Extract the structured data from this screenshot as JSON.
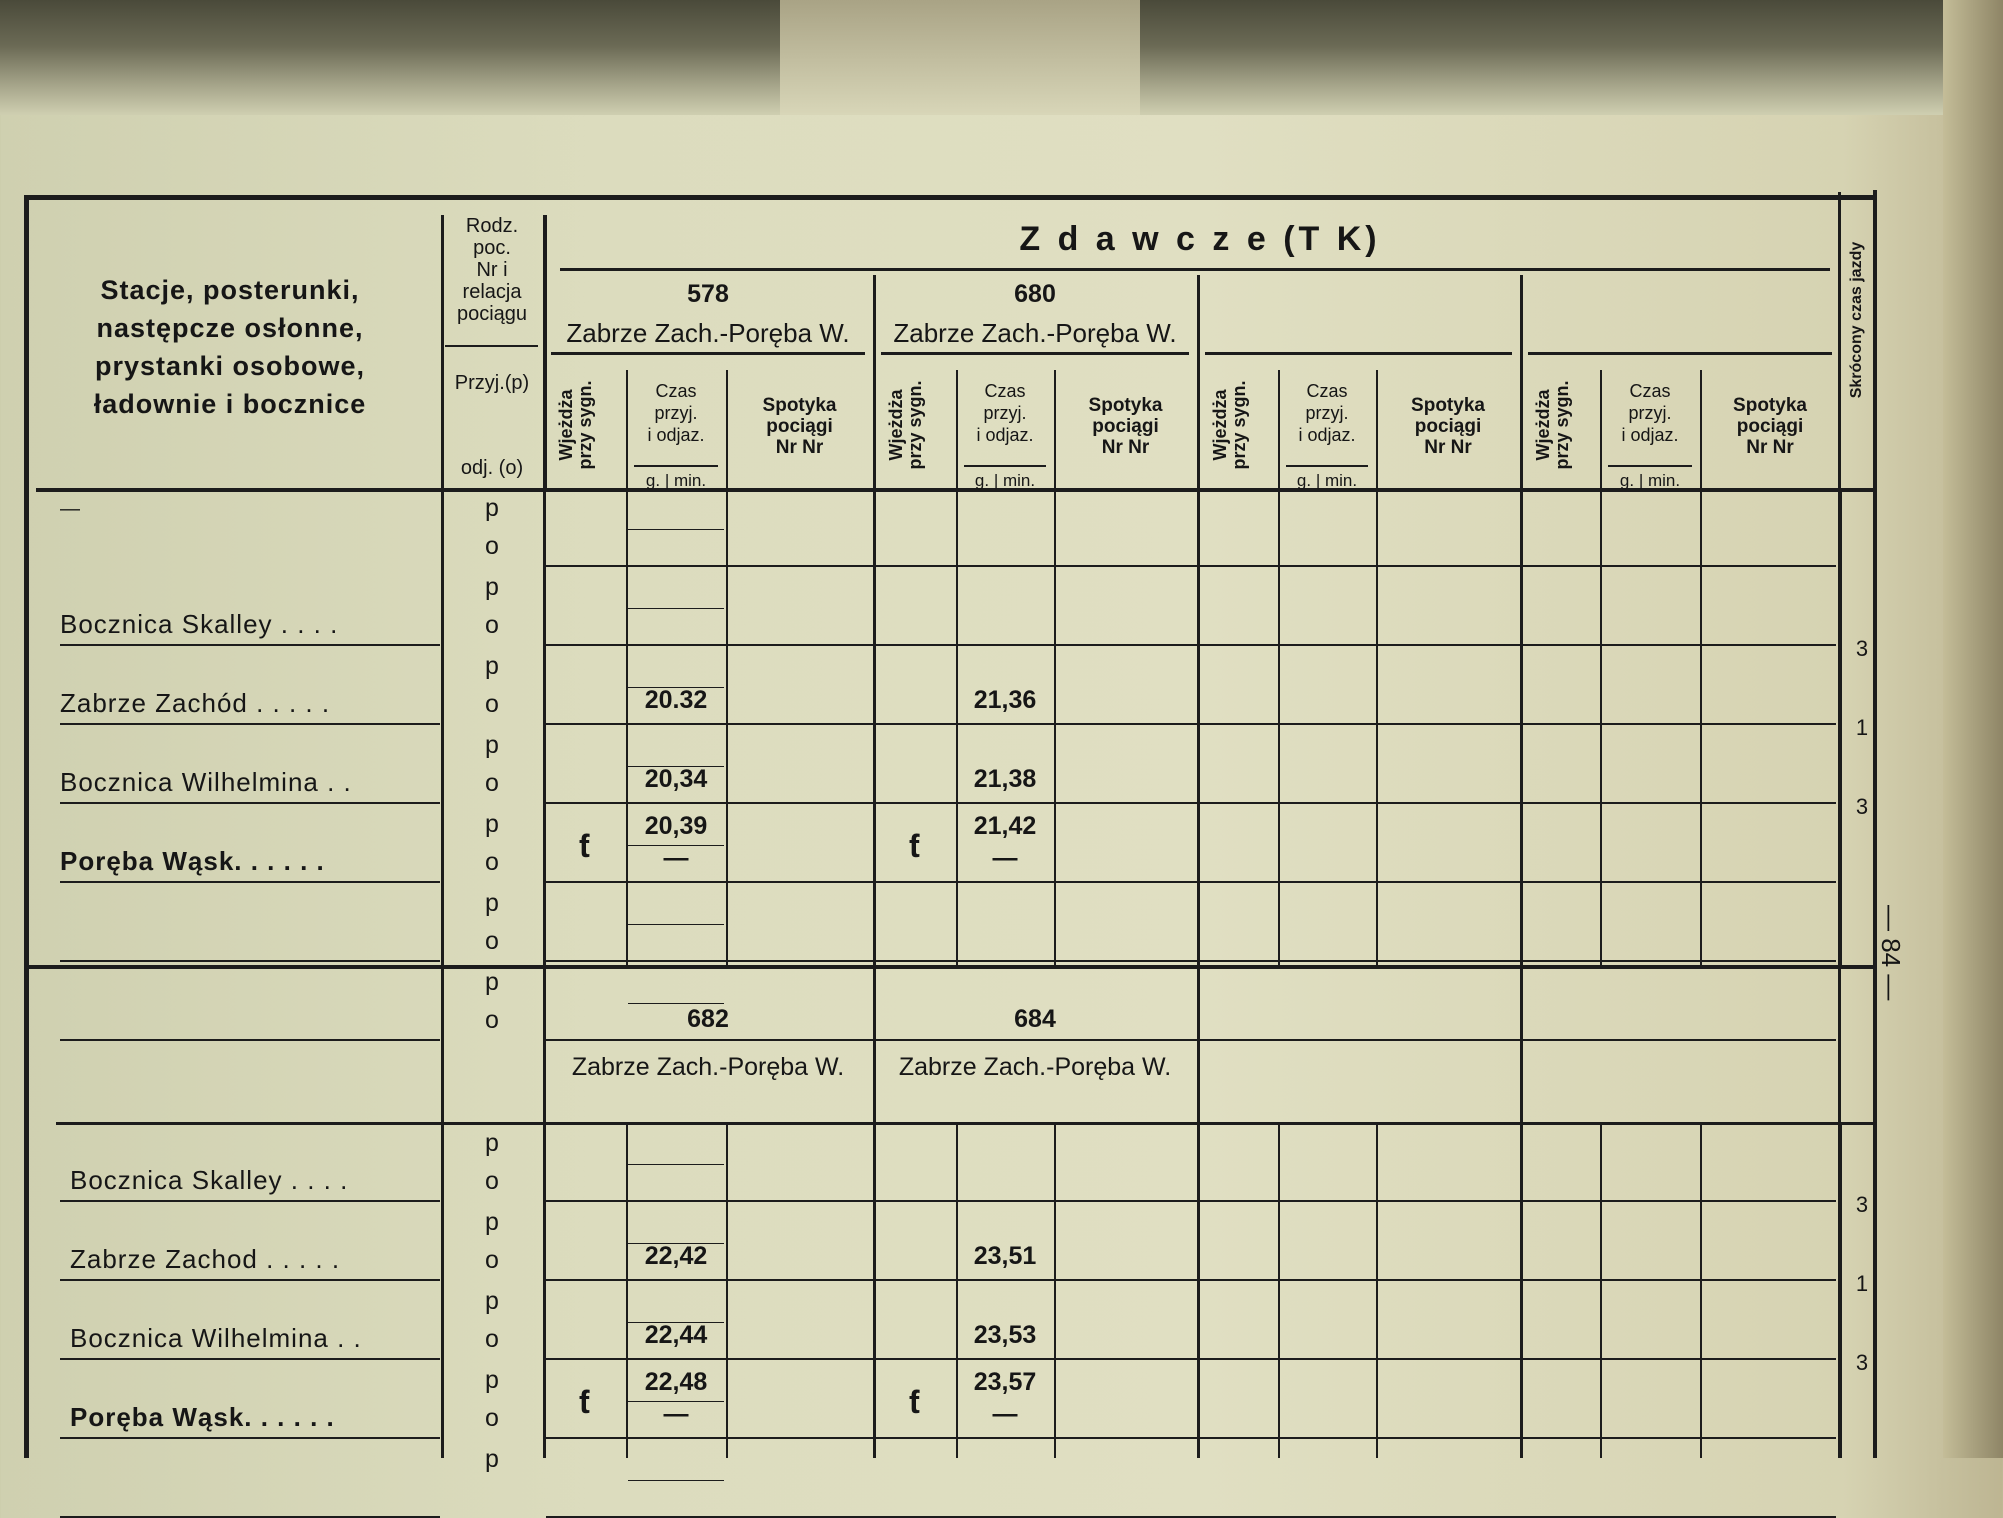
{
  "header": {
    "stations_label": [
      "Stacje, posterunki,",
      "następcze osłonne,",
      "prystanki osobowe,",
      "ładownie i bocznice"
    ],
    "rodz_label": [
      "Rodz.",
      "poc.",
      "Nr i",
      "relacja",
      "pociągu"
    ],
    "przyj_label": "Przyj.(p)",
    "odj_label": "odj. (o)",
    "group_title": "Z d a w c z e  (T K)",
    "wjezdza_label": [
      "Wjeżdża",
      "przy sygn."
    ],
    "czas_label": [
      "Czas",
      "przyj.",
      "i odjaz."
    ],
    "czas_units": "g. | min.",
    "spotyka_label": [
      "Spotyka",
      "pociągi",
      "Nr Nr"
    ],
    "skrocony_label": "Skrócony czas jazdy"
  },
  "page_number": "— 84 —",
  "sections": [
    {
      "trains": [
        {
          "number": "578",
          "relation": "Zabrze Zach.-Poręba W."
        },
        {
          "number": "680",
          "relation": "Zabrze Zach.-Poręba W."
        },
        {
          "number": "",
          "relation": ""
        },
        {
          "number": "",
          "relation": ""
        }
      ],
      "rows": [
        {
          "station": "—",
          "p": "p",
          "o": "o",
          "times": [
            [
              "",
              ""
            ],
            [
              "",
              ""
            ]
          ],
          "marks": [
            "",
            ""
          ],
          "skrocony": ""
        },
        {
          "station": "Bocznica Skalley . . . .",
          "p": "p",
          "o": "o",
          "times": [
            [
              "",
              ""
            ],
            [
              "",
              ""
            ]
          ],
          "marks": [
            "",
            ""
          ],
          "skrocony": ""
        },
        {
          "station": "Zabrze Zachód . . . . .",
          "p": "p",
          "o": "o",
          "times": [
            [
              "",
              "20.32"
            ],
            [
              "",
              "21,36"
            ]
          ],
          "marks": [
            "",
            ""
          ],
          "skrocony": "3"
        },
        {
          "station": "Bocznica Wilhelmina . .",
          "p": "p",
          "o": "o",
          "times": [
            [
              "",
              "20,34"
            ],
            [
              "",
              "21,38"
            ]
          ],
          "marks": [
            "",
            ""
          ],
          "skrocony": "1"
        },
        {
          "station": "Poręba Wąsk. . . . . .",
          "p": "p",
          "o": "o",
          "times": [
            [
              "20,39",
              "—"
            ],
            [
              "21,42",
              "—"
            ]
          ],
          "marks": [
            "ƭ",
            "ƭ"
          ],
          "skrocony": "3"
        },
        {
          "station": "",
          "p": "p",
          "o": "o",
          "times": [
            [
              "",
              ""
            ],
            [
              "",
              ""
            ]
          ],
          "marks": [
            "",
            ""
          ],
          "skrocony": ""
        },
        {
          "station": "",
          "p": "p",
          "o": "o",
          "times": [
            [
              "",
              ""
            ],
            [
              "",
              ""
            ]
          ],
          "marks": [
            "",
            ""
          ],
          "skrocony": ""
        }
      ]
    },
    {
      "trains": [
        {
          "number": "682",
          "relation": "Zabrze Zach.-Poręba W."
        },
        {
          "number": "684",
          "relation": "Zabrze Zach.-Poręba W."
        },
        {
          "number": "",
          "relation": ""
        },
        {
          "number": "",
          "relation": ""
        }
      ],
      "rows": [
        {
          "station": "Bocznica Skalley . . . .",
          "p": "p",
          "o": "o",
          "times": [
            [
              "",
              ""
            ],
            [
              "",
              ""
            ]
          ],
          "marks": [
            "",
            ""
          ],
          "skrocony": ""
        },
        {
          "station": "Zabrze Zachod . . . . .",
          "p": "p",
          "o": "o",
          "times": [
            [
              "",
              "22,42"
            ],
            [
              "",
              "23,51"
            ]
          ],
          "marks": [
            "",
            ""
          ],
          "skrocony": "3"
        },
        {
          "station": "Bocznica Wilhelmina . .",
          "p": "p",
          "o": "o",
          "times": [
            [
              "",
              "22,44"
            ],
            [
              "",
              "23,53"
            ]
          ],
          "marks": [
            "",
            ""
          ],
          "skrocony": "1"
        },
        {
          "station": "Poręba Wąsk. . . . . .",
          "p": "p",
          "o": "o",
          "times": [
            [
              "22,48",
              "—"
            ],
            [
              "23,57",
              "—"
            ]
          ],
          "marks": [
            "ƭ",
            "ƭ"
          ],
          "skrocony": "3"
        },
        {
          "station": "",
          "p": "p",
          "o": "",
          "times": [
            [
              "",
              ""
            ],
            [
              "",
              ""
            ]
          ],
          "marks": [
            "",
            ""
          ],
          "skrocony": ""
        }
      ]
    }
  ]
}
